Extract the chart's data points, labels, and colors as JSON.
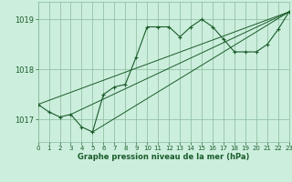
{
  "bg_color": "#cceedd",
  "grid_color": "#88bb99",
  "line_color": "#1a5c2a",
  "xlabel": "Graphe pression niveau de la mer (hPa)",
  "xlim": [
    0,
    23
  ],
  "ylim": [
    1016.55,
    1019.35
  ],
  "yticks": [
    1017,
    1018,
    1019
  ],
  "xticks": [
    0,
    1,
    2,
    3,
    4,
    5,
    6,
    7,
    8,
    9,
    10,
    11,
    12,
    13,
    14,
    15,
    16,
    17,
    18,
    19,
    20,
    21,
    22,
    23
  ],
  "series1": [
    [
      0,
      1017.3
    ],
    [
      1,
      1017.15
    ],
    [
      2,
      1017.05
    ],
    [
      3,
      1017.1
    ],
    [
      4,
      1016.85
    ],
    [
      5,
      1016.75
    ],
    [
      6,
      1017.5
    ],
    [
      7,
      1017.65
    ],
    [
      8,
      1017.7
    ],
    [
      9,
      1018.25
    ],
    [
      10,
      1018.85
    ],
    [
      11,
      1018.85
    ],
    [
      12,
      1018.85
    ],
    [
      13,
      1018.65
    ],
    [
      14,
      1018.85
    ],
    [
      15,
      1019.0
    ],
    [
      16,
      1018.85
    ],
    [
      17,
      1018.6
    ],
    [
      18,
      1018.35
    ],
    [
      19,
      1018.35
    ],
    [
      20,
      1018.35
    ],
    [
      21,
      1018.5
    ],
    [
      22,
      1018.8
    ],
    [
      23,
      1019.15
    ]
  ],
  "series2": [
    [
      0,
      1017.3
    ],
    [
      23,
      1019.15
    ]
  ],
  "series3": [
    [
      3,
      1017.1
    ],
    [
      23,
      1019.15
    ]
  ],
  "series4": [
    [
      5,
      1016.75
    ],
    [
      23,
      1019.15
    ]
  ]
}
